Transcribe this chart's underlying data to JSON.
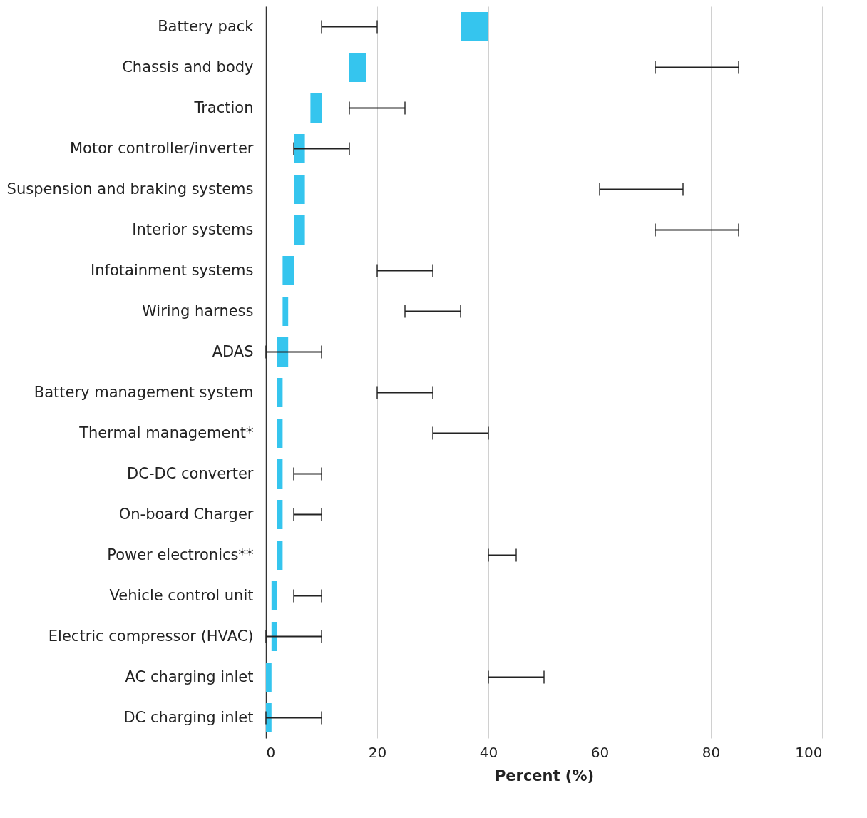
{
  "chart_data": {
    "type": "bar",
    "orientation": "horizontal",
    "xlabel": "Percent (%)",
    "categories": [
      "Battery pack",
      "Chassis and body",
      "Traction",
      "Motor controller/inverter",
      "Suspension and braking systems",
      "Interior systems",
      "Infotainment systems",
      "Wiring harness",
      "ADAS",
      "Battery management system",
      "Thermal management*",
      "DC-DC converter",
      "On-board Charger",
      "Power electronics**",
      "Vehicle control unit",
      "Electric compressor (HVAC)",
      "AC charging inlet",
      "DC charging inlet"
    ],
    "base": [
      35,
      15,
      8,
      5,
      5,
      5,
      3,
      3,
      2,
      2,
      2,
      2,
      2,
      2,
      1,
      1,
      0,
      0
    ],
    "values": [
      5,
      3,
      2,
      2,
      2,
      2,
      2,
      1,
      2,
      1,
      1,
      1,
      1,
      1,
      1,
      1,
      1,
      1
    ],
    "errors": [
      [
        10,
        20
      ],
      [
        70,
        85
      ],
      [
        15,
        25
      ],
      [
        5,
        15
      ],
      [
        60,
        75
      ],
      [
        70,
        85
      ],
      [
        20,
        30
      ],
      [
        25,
        35
      ],
      [
        0,
        10
      ],
      [
        20,
        30
      ],
      [
        30,
        40
      ],
      [
        5,
        10
      ],
      [
        5,
        10
      ],
      [
        40,
        45
      ],
      [
        5,
        10
      ],
      [
        0,
        10
      ],
      [
        40,
        50
      ],
      [
        0,
        10
      ]
    ],
    "color": "#35c5ee",
    "xlim": [
      0,
      100
    ],
    "xticks": [
      0,
      20,
      40,
      60,
      80,
      100
    ],
    "grid": "x"
  }
}
